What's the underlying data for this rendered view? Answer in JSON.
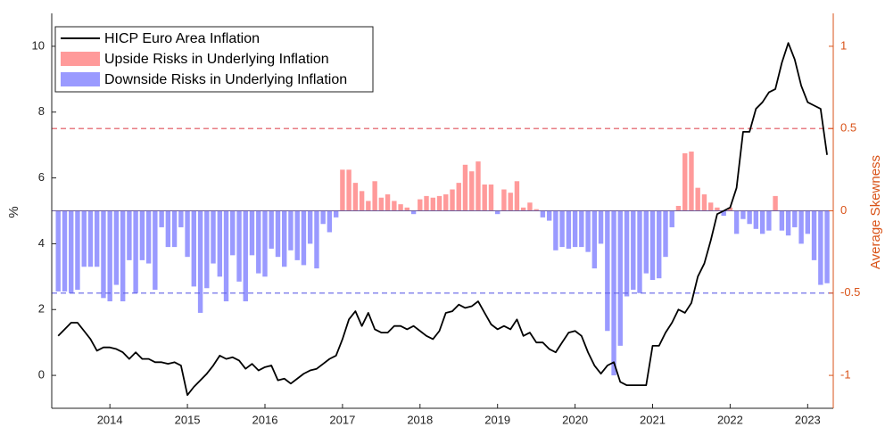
{
  "chart_data": {
    "type": "line_bar",
    "ylabel": "%",
    "y2label": "Average Skewness",
    "y2_color": "#d95319",
    "x": [
      2013.333,
      2013.417,
      2013.5,
      2013.583,
      2013.667,
      2013.75,
      2013.833,
      2013.917,
      2014,
      2014.083,
      2014.167,
      2014.25,
      2014.333,
      2014.417,
      2014.5,
      2014.583,
      2014.667,
      2014.75,
      2014.833,
      2014.917,
      2015,
      2015.083,
      2015.167,
      2015.25,
      2015.333,
      2015.417,
      2015.5,
      2015.583,
      2015.667,
      2015.75,
      2015.833,
      2015.917,
      2016,
      2016.083,
      2016.167,
      2016.25,
      2016.333,
      2016.417,
      2016.5,
      2016.583,
      2016.667,
      2016.75,
      2016.833,
      2016.917,
      2017,
      2017.083,
      2017.167,
      2017.25,
      2017.333,
      2017.417,
      2017.5,
      2017.583,
      2017.667,
      2017.75,
      2017.833,
      2017.917,
      2018,
      2018.083,
      2018.167,
      2018.25,
      2018.333,
      2018.417,
      2018.5,
      2018.583,
      2018.667,
      2018.75,
      2018.833,
      2018.917,
      2019,
      2019.083,
      2019.167,
      2019.25,
      2019.333,
      2019.417,
      2019.5,
      2019.583,
      2019.667,
      2019.75,
      2019.833,
      2019.917,
      2020,
      2020.083,
      2020.167,
      2020.25,
      2020.333,
      2020.417,
      2020.5,
      2020.583,
      2020.667,
      2020.75,
      2020.833,
      2020.917,
      2021,
      2021.083,
      2021.167,
      2021.25,
      2021.333,
      2021.417,
      2021.5,
      2021.583,
      2021.667,
      2021.75,
      2021.833,
      2021.917,
      2022,
      2022.083,
      2022.167,
      2022.25,
      2022.333,
      2022.417,
      2022.5,
      2022.583,
      2022.667,
      2022.75,
      2022.833,
      2022.917,
      2023,
      2023.083,
      2023.167,
      2023.25
    ],
    "series": [
      {
        "name": "HICP Euro Area Inflation",
        "color": "#000000",
        "values": [
          1.2,
          1.4,
          1.6,
          1.6,
          1.35,
          1.1,
          0.75,
          0.85,
          0.85,
          0.8,
          0.7,
          0.5,
          0.7,
          0.5,
          0.5,
          0.4,
          0.4,
          0.35,
          0.4,
          0.3,
          -0.6,
          -0.35,
          -0.15,
          0.05,
          0.3,
          0.6,
          0.5,
          0.55,
          0.45,
          0.2,
          0.35,
          0.15,
          0.25,
          0.3,
          -0.15,
          -0.1,
          -0.25,
          -0.1,
          0.05,
          0.15,
          0.2,
          0.35,
          0.5,
          0.6,
          1.1,
          1.7,
          1.95,
          1.5,
          1.9,
          1.4,
          1.3,
          1.3,
          1.5,
          1.5,
          1.4,
          1.5,
          1.35,
          1.2,
          1.1,
          1.35,
          1.9,
          1.95,
          2.15,
          2.05,
          2.1,
          2.25,
          1.9,
          1.55,
          1.4,
          1.5,
          1.4,
          1.7,
          1.2,
          1.3,
          1.0,
          1.0,
          0.8,
          0.7,
          1.0,
          1.3,
          1.35,
          1.2,
          0.7,
          0.3,
          0.05,
          0.3,
          0.4,
          -0.2,
          -0.3,
          -0.3,
          -0.3,
          -0.3,
          0.9,
          0.9,
          1.3,
          1.6,
          2.0,
          1.9,
          2.2,
          3.0,
          3.4,
          4.1,
          4.9,
          5.0,
          5.1,
          5.7,
          7.4,
          7.4,
          8.1,
          8.3,
          8.6,
          8.7,
          9.5,
          10.1,
          9.6,
          8.8,
          8.3,
          8.2,
          8.1,
          6.7
        ]
      }
    ],
    "bars": {
      "axis": "y2",
      "upside": {
        "name": "Upside Risks in Underlying Inflation",
        "color": "#ff9a9a"
      },
      "downside": {
        "name": "Downside Risks in Underlying Inflation",
        "color": "#9a9aff"
      },
      "values": [
        -0.49,
        -0.49,
        -0.5,
        -0.48,
        -0.34,
        -0.34,
        -0.34,
        -0.53,
        -0.55,
        -0.45,
        -0.55,
        -0.3,
        -0.5,
        -0.3,
        -0.32,
        -0.48,
        -0.1,
        -0.22,
        -0.22,
        -0.1,
        -0.28,
        -0.46,
        -0.62,
        -0.47,
        -0.32,
        -0.4,
        -0.55,
        -0.27,
        -0.43,
        -0.55,
        -0.27,
        -0.38,
        -0.4,
        -0.23,
        -0.28,
        -0.34,
        -0.24,
        -0.3,
        -0.33,
        -0.2,
        -0.35,
        -0.08,
        -0.13,
        -0.04,
        0.25,
        0.25,
        0.17,
        0.12,
        0.06,
        0.18,
        0.08,
        0.1,
        0.06,
        0.04,
        0.02,
        -0.02,
        0.07,
        0.09,
        0.08,
        0.09,
        0.1,
        0.13,
        0.17,
        0.28,
        0.24,
        0.3,
        0.16,
        0.16,
        -0.02,
        0.13,
        0.11,
        0.18,
        0.02,
        0.05,
        0.01,
        -0.04,
        -0.06,
        -0.24,
        -0.22,
        -0.23,
        -0.22,
        -0.22,
        -0.25,
        -0.35,
        -0.2,
        -0.73,
        -1.0,
        -0.82,
        -0.52,
        -0.48,
        -0.5,
        -0.38,
        -0.42,
        -0.41,
        -0.28,
        -0.1,
        0.03,
        0.35,
        0.36,
        0.14,
        0.1,
        0.05,
        0.02,
        -0.03,
        0.02,
        -0.14,
        -0.05,
        -0.08,
        -0.11,
        -0.14,
        -0.12,
        0.09,
        -0.12,
        -0.15,
        -0.1,
        -0.2,
        -0.14,
        -0.3,
        -0.45,
        -0.44
      ]
    },
    "y2_reference_lines": [
      {
        "value": 0.5,
        "color": "#e0505a"
      },
      {
        "value": -0.5,
        "color": "#6262e6"
      }
    ],
    "xlim": [
      2013.25,
      2023.33
    ],
    "xticks": [
      2014,
      2015,
      2016,
      2017,
      2018,
      2019,
      2020,
      2021,
      2022,
      2023
    ],
    "ylim": [
      -1,
      11
    ],
    "yticks": [
      0,
      2,
      4,
      6,
      8,
      10
    ],
    "y2lim": [
      -1.2,
      1.2
    ],
    "y2ticks": [
      -1,
      -0.5,
      0,
      0.5,
      1
    ],
    "legend": "upper-left"
  }
}
